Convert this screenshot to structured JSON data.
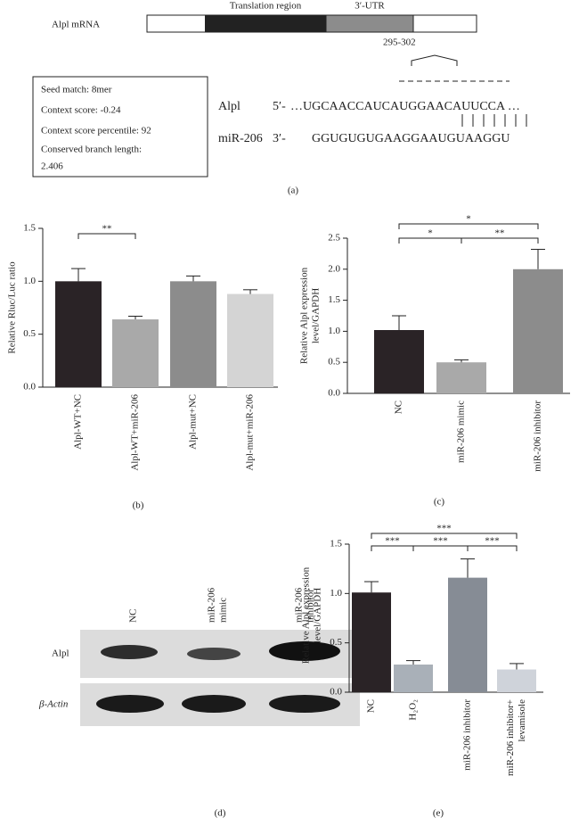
{
  "panel_a": {
    "label": "(a)",
    "mrna_label": "Alpl mRNA",
    "translation_label": "Translation region",
    "utr_label": "3′-UTR",
    "site_label": "295-302",
    "info_box": [
      "Seed match: 8mer",
      "Context score: -0.24",
      "Context score percentile: 92",
      "Conserved branch length:",
      "2.406"
    ],
    "alignment": [
      {
        "name": "Alpl",
        "end": "5′-",
        "sequence": "…UGCAACCAUCAUGGAACAUUCCA …"
      },
      {
        "name": "miR-206",
        "end": "3′-",
        "sequence": "GGUGUGUGAAGGAAUGUAAGGU"
      }
    ]
  },
  "panel_d": {
    "label": "(d)",
    "lanes": [
      [
        "NC"
      ],
      [
        "miR-206",
        "mimic"
      ],
      [
        "miR-206",
        "inhibitor"
      ]
    ],
    "rows": [
      "Alpl",
      "β-Actin"
    ]
  },
  "chart_data": [
    {
      "type": "bar",
      "panel_label": "(b)",
      "ylabel": [
        "Relative Rluc/Luc ratio"
      ],
      "categories": [
        [
          "Alpl-WT+NC"
        ],
        [
          "Alpl-WT+miR-206"
        ],
        [
          "Alpl-mut+NC"
        ],
        [
          "Alpl-mut+miR-206"
        ]
      ],
      "values": [
        1.0,
        0.64,
        1.0,
        0.88
      ],
      "errors": [
        0.12,
        0.03,
        0.05,
        0.04
      ],
      "colors": [
        "#2a2326",
        "#a9a9a9",
        "#8c8c8c",
        "#d4d4d4"
      ],
      "ylim": [
        0,
        1.5
      ],
      "yticks": [
        {
          "value": 0,
          "label": "0.0"
        },
        0.5,
        {
          "value": 1,
          "label": "1.0"
        },
        1.5
      ],
      "significance": [
        {
          "from": 0,
          "to": 1,
          "label": "**"
        }
      ]
    },
    {
      "type": "bar",
      "panel_label": "(c)",
      "ylabel": [
        "Relative Alpl expression",
        "level/GAPDH"
      ],
      "categories": [
        [
          "NC"
        ],
        [
          "miR-206 mimic"
        ],
        [
          "miR-206 inhibitor"
        ]
      ],
      "values": [
        1.02,
        0.5,
        2.0
      ],
      "errors": [
        0.23,
        0.04,
        0.32
      ],
      "colors": [
        "#2a2326",
        "#a9a9a9",
        "#8c8c8c"
      ],
      "ylim": [
        0,
        2.5
      ],
      "yticks": [
        {
          "value": 0,
          "label": "0.0"
        },
        0.5,
        {
          "value": 1,
          "label": "1.0"
        },
        1.5,
        {
          "value": 2,
          "label": "2.0"
        },
        2.5
      ],
      "significance": [
        {
          "from": 0,
          "to": 1,
          "label": "*"
        },
        {
          "from": 1,
          "to": 2,
          "label": "**"
        },
        {
          "from": 0,
          "to": 2,
          "label": "*"
        }
      ]
    },
    {
      "type": "bar",
      "panel_label": "(e)",
      "ylabel": [
        "Relative Alpl expression",
        "level/GAPDH"
      ],
      "categories": [
        [
          "NC"
        ],
        [
          "H₂O₂"
        ],
        [
          "miR-206 inhibitor"
        ],
        [
          "miR-206 inhibitor+",
          "levamisole"
        ]
      ],
      "values": [
        1.01,
        0.28,
        1.16,
        0.23
      ],
      "errors": [
        0.11,
        0.04,
        0.19,
        0.06
      ],
      "colors": [
        "#2a2326",
        "#a9b0b8",
        "#868c95",
        "#cfd3da"
      ],
      "ylim": [
        0,
        1.5
      ],
      "yticks": [
        {
          "value": 0,
          "label": "0.0"
        },
        0.5,
        {
          "value": 1,
          "label": "1.0"
        },
        1.5
      ],
      "significance": [
        {
          "from": 0,
          "to": 1,
          "label": "***"
        },
        {
          "from": 1,
          "to": 2,
          "label": "***"
        },
        {
          "from": 2,
          "to": 3,
          "label": "***"
        },
        {
          "from": 0,
          "to": 3,
          "label": "***"
        }
      ]
    }
  ]
}
